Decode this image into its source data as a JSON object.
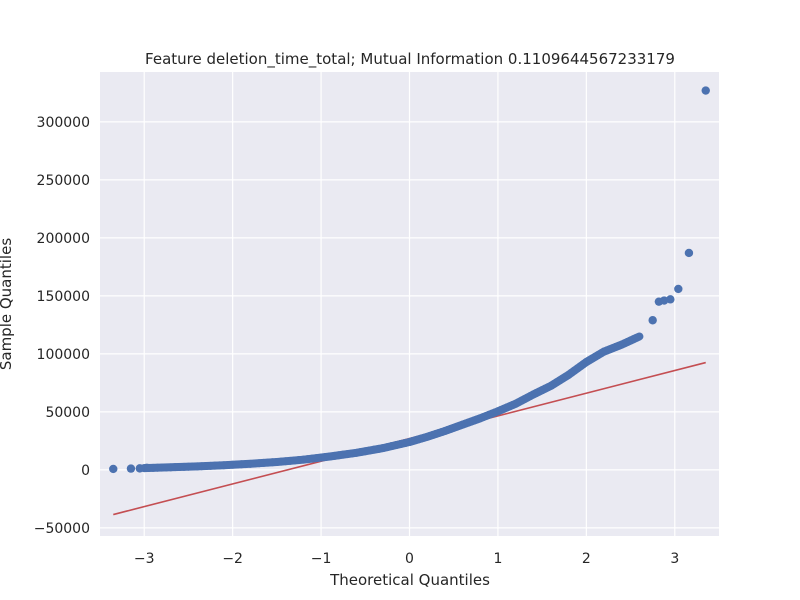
{
  "chart_data": {
    "type": "scatter",
    "title": "Feature deletion_time_total; Mutual Information 0.1109644567233179",
    "xlabel": "Theoretical Quantiles",
    "ylabel": "Sample Quantiles",
    "xlim": [
      -3.5,
      3.5
    ],
    "ylim": [
      -57000,
      343000
    ],
    "x_ticks": [
      -3,
      -2,
      -1,
      0,
      1,
      2,
      3
    ],
    "x_tick_labels": [
      "−3",
      "−2",
      "−1",
      "0",
      "1",
      "2",
      "3"
    ],
    "y_ticks": [
      -50000,
      0,
      50000,
      100000,
      150000,
      200000,
      250000,
      300000
    ],
    "y_tick_labels": [
      "−50000",
      "0",
      "50000",
      "100000",
      "150000",
      "200000",
      "250000",
      "300000"
    ],
    "grid": true,
    "colors": {
      "background": "#eaeaf2",
      "grid": "#ffffff",
      "points": "#4c72b0",
      "line": "#c44e52"
    },
    "reference_line": {
      "x": [
        -3.35,
        3.35
      ],
      "y": [
        -38500,
        92500
      ]
    },
    "quantile_curve": {
      "x": [
        -3.0,
        -2.7,
        -2.4,
        -2.1,
        -1.8,
        -1.5,
        -1.2,
        -0.9,
        -0.6,
        -0.3,
        0.0,
        0.2,
        0.4,
        0.6,
        0.8,
        1.0,
        1.2,
        1.4,
        1.6,
        1.8,
        2.0,
        2.2,
        2.4,
        2.6
      ],
      "y": [
        1500,
        2200,
        3000,
        4000,
        5200,
        6800,
        8800,
        11500,
        14700,
        18800,
        24000,
        28500,
        33500,
        39000,
        44500,
        50500,
        57000,
        65000,
        72500,
        82000,
        93000,
        102000,
        108000,
        115000
      ]
    },
    "points": {
      "x": [
        -3.35,
        -3.15,
        -3.05,
        -2.97,
        2.75,
        2.82,
        2.88,
        2.95,
        3.04,
        3.16,
        3.35
      ],
      "y": [
        800,
        1100,
        1300,
        1800,
        129000,
        145000,
        146000,
        147000,
        156000,
        187000,
        327000
      ]
    }
  }
}
